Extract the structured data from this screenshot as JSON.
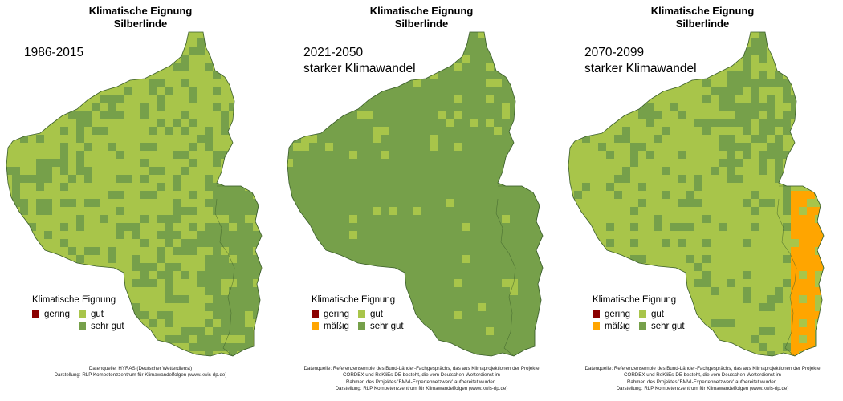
{
  "panels": [
    {
      "title_line1": "Klimatische Eignung",
      "title_line2": "Silberlinde",
      "period": "1986-2015",
      "scenario": "",
      "legend_mode": "short",
      "credits": [
        "Datenquelle: HYRAS (Deutscher Wetterdienst)",
        "Darstellung: RLP Kompetenzzentrum für Klimawandelfolgen (www.kwis-rlp.de)"
      ]
    },
    {
      "title_line1": "Klimatische Eignung",
      "title_line2": "Silberlinde",
      "period": "2021-2050",
      "scenario": "starker Klimawandel",
      "legend_mode": "full",
      "credits": [
        "Datenquelle: Referenzensemble des Bund-Länder-Fachgesprächs, das aus Klimaprojektionen der Projekte",
        "CORDEX und ReKliEs-DE besteht, die vom Deutschen Wetterdienst im",
        "Rahmen des Projektes 'BMVI-Expertennetzwerk' aufbereitet wurden.",
        "Darstellung: RLP Kompetenzzentrum für Klimawandelfolgen (www.kwis-rlp.de)"
      ]
    },
    {
      "title_line1": "Klimatische Eignung",
      "title_line2": "Silberlinde",
      "period": "2070-2099",
      "scenario": "starker Klimawandel",
      "legend_mode": "full",
      "credits": [
        "Datenquelle: Referenzensemble des Bund-Länder-Fachgesprächs, das aus Klimaprojektionen der Projekte",
        "CORDEX und ReKliEs-DE besteht, die vom Deutschen Wetterdienst im",
        "Rahmen des Projektes 'BMVI-Expertennetzwerk' aufbereitet wurden.",
        "Darstellung: RLP Kompetenzzentrum für Klimawandelfolgen (www.kwis-rlp.de)"
      ]
    }
  ],
  "legend": {
    "title": "Klimatische Eignung",
    "classes": {
      "gering": {
        "label": "gering",
        "color": "#8b0000"
      },
      "maessig": {
        "label": "mäßig",
        "color": "#ffa500"
      },
      "gut": {
        "label": "gut",
        "color": "#a8c54a"
      },
      "sehr_gut": {
        "label": "sehr gut",
        "color": "#76a04a"
      }
    }
  },
  "colors": {
    "sehr_gut": "#76a04a",
    "gut": "#a8c54a",
    "maessig": "#ffa500",
    "outline": "#3a5d2a"
  }
}
